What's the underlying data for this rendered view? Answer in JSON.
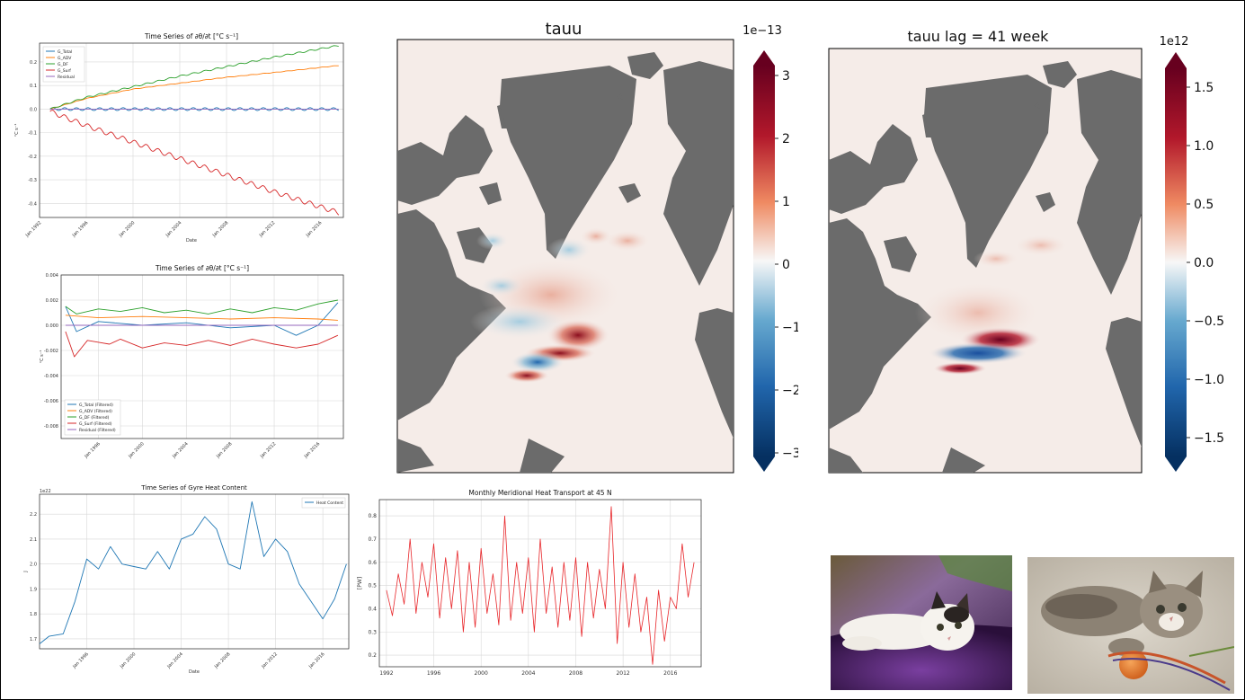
{
  "chart_data": [
    {
      "id": "budget",
      "type": "line",
      "title": "Time Series of ∂θ/∂t [°C s⁻¹]",
      "xlabel": "Date",
      "ylabel": "°C s⁻¹",
      "x_ticks": [
        "Jan 1992",
        "Jan 1996",
        "Jan 2000",
        "Jan 2004",
        "Jan 2008",
        "Jan 2012",
        "Jan 2016"
      ],
      "y_ticks": [
        "0.2",
        "0.1",
        "0.0",
        "-0.1",
        "-0.2",
        "-0.3",
        "-0.4"
      ],
      "ylim": [
        -0.46,
        0.28
      ],
      "xlim": [
        1992.0,
        2018.0
      ],
      "legend": "top-left",
      "grid": true,
      "series": [
        {
          "name": "G_Total",
          "color": "#1f77b4",
          "values": [
            [
              1992.9,
              0.0
            ],
            [
              2017.6,
              0.0
            ]
          ],
          "ripple": 0.006
        },
        {
          "name": "G_ADV",
          "color": "#ff7f0e",
          "values": [
            [
              1992.9,
              0.0
            ],
            [
              1996,
              0.045
            ],
            [
              2000,
              0.085
            ],
            [
              2004,
              0.11
            ],
            [
              2008,
              0.135
            ],
            [
              2012,
              0.155
            ],
            [
              2017.6,
              0.185
            ]
          ],
          "ripple": 0.001
        },
        {
          "name": "G_DF",
          "color": "#2ca02c",
          "values": [
            [
              1992.9,
              0.0
            ],
            [
              1996,
              0.05
            ],
            [
              2000,
              0.095
            ],
            [
              2004,
              0.14
            ],
            [
              2008,
              0.18
            ],
            [
              2012,
              0.22
            ],
            [
              2017.6,
              0.27
            ]
          ],
          "ripple": 0.003
        },
        {
          "name": "G_Surf",
          "color": "#d62728",
          "values": [
            [
              1992.9,
              -0.01
            ],
            [
              1996,
              -0.07
            ],
            [
              2000,
              -0.14
            ],
            [
              2004,
              -0.21
            ],
            [
              2008,
              -0.28
            ],
            [
              2012,
              -0.35
            ],
            [
              2017.6,
              -0.44
            ]
          ],
          "ripple": 0.01
        },
        {
          "name": "Residual",
          "color": "#9467bd",
          "values": [
            [
              1992.9,
              0.0
            ],
            [
              2017.6,
              0.0
            ]
          ],
          "ripple": 0.0
        }
      ]
    },
    {
      "id": "filtered",
      "type": "line",
      "title": "Time Series of ∂θ/∂t [°C s⁻¹]",
      "xlabel": "",
      "ylabel": "°C s⁻¹",
      "x_ticks": [
        "Jan 1996",
        "Jan 2000",
        "Jan 2004",
        "Jan 2008",
        "Jan 2012",
        "Jan 2016"
      ],
      "y_ticks": [
        "0.004",
        "0.002",
        "0.000",
        "-0.002",
        "-0.004",
        "-0.006",
        "-0.008"
      ],
      "ylim": [
        -0.009,
        0.004
      ],
      "xlim": [
        1992.6,
        2018.3
      ],
      "legend": "bottom-left",
      "grid": true,
      "series": [
        {
          "name": "G_Total (Filtered)",
          "color": "#1f77b4",
          "values": [
            [
              1993,
              0.0015
            ],
            [
              1994,
              -0.0005
            ],
            [
              1996,
              0.0003
            ],
            [
              2000,
              0.0
            ],
            [
              2004,
              0.0002
            ],
            [
              2008,
              -0.0002
            ],
            [
              2012,
              0.0
            ],
            [
              2014,
              -0.0008
            ],
            [
              2016,
              0.0
            ],
            [
              2017.8,
              0.0018
            ]
          ]
        },
        {
          "name": "G_ADV (Filtered)",
          "color": "#ff7f0e",
          "values": [
            [
              1993,
              0.0008
            ],
            [
              1996,
              0.0006
            ],
            [
              2000,
              0.0007
            ],
            [
              2004,
              0.0006
            ],
            [
              2008,
              0.0005
            ],
            [
              2012,
              0.0006
            ],
            [
              2016,
              0.0005
            ],
            [
              2017.8,
              0.0004
            ]
          ]
        },
        {
          "name": "G_DF (Filtered)",
          "color": "#2ca02c",
          "values": [
            [
              1993,
              0.0015
            ],
            [
              1994,
              0.0009
            ],
            [
              1996,
              0.0013
            ],
            [
              1998,
              0.0011
            ],
            [
              2000,
              0.0014
            ],
            [
              2002,
              0.001
            ],
            [
              2004,
              0.0012
            ],
            [
              2006,
              0.0009
            ],
            [
              2008,
              0.0013
            ],
            [
              2010,
              0.001
            ],
            [
              2012,
              0.0014
            ],
            [
              2014,
              0.0012
            ],
            [
              2016,
              0.0017
            ],
            [
              2017.8,
              0.002
            ]
          ]
        },
        {
          "name": "G_Surf (Filtered)",
          "color": "#d62728",
          "values": [
            [
              1993,
              -0.0005
            ],
            [
              1993.8,
              -0.0025
            ],
            [
              1995,
              -0.0012
            ],
            [
              1997,
              -0.0015
            ],
            [
              1998,
              -0.0011
            ],
            [
              2000,
              -0.0018
            ],
            [
              2002,
              -0.0014
            ],
            [
              2004,
              -0.0016
            ],
            [
              2006,
              -0.0012
            ],
            [
              2008,
              -0.0016
            ],
            [
              2010,
              -0.0011
            ],
            [
              2012,
              -0.0015
            ],
            [
              2014,
              -0.0018
            ],
            [
              2016,
              -0.0015
            ],
            [
              2017.8,
              -0.0008
            ]
          ]
        },
        {
          "name": "Residual (Filtered)",
          "color": "#9467bd",
          "values": [
            [
              1993,
              0.0
            ],
            [
              2017.8,
              0.0
            ]
          ]
        }
      ]
    },
    {
      "id": "heat",
      "type": "line",
      "title": "Time Series of Gyre Heat Content",
      "xlabel": "Date",
      "ylabel": "J",
      "y_scale_note": "1e22",
      "x_ticks": [
        "Jan 1996",
        "Jan 2000",
        "Jan 2004",
        "Jan 2008",
        "Jan 2012",
        "Jan 2016"
      ],
      "y_ticks": [
        "2.2",
        "2.1",
        "2.0",
        "1.9",
        "1.8",
        "1.7"
      ],
      "ylim": [
        1.66,
        2.28
      ],
      "xlim": [
        1992.0,
        2018.2
      ],
      "legend": "top-right",
      "grid": true,
      "series": [
        {
          "name": "Heat Content",
          "color": "#1f77b4",
          "values": [
            [
              1992.0,
              1.68
            ],
            [
              1992.8,
              1.71
            ],
            [
              1994,
              1.72
            ],
            [
              1995,
              1.85
            ],
            [
              1996,
              2.02
            ],
            [
              1997,
              1.98
            ],
            [
              1998,
              2.07
            ],
            [
              1999,
              2.0
            ],
            [
              2000,
              1.99
            ],
            [
              2001,
              1.98
            ],
            [
              2002,
              2.05
            ],
            [
              2003,
              1.98
            ],
            [
              2004,
              2.1
            ],
            [
              2005,
              2.12
            ],
            [
              2006,
              2.19
            ],
            [
              2007,
              2.14
            ],
            [
              2008,
              2.0
            ],
            [
              2009,
              1.98
            ],
            [
              2010,
              2.25
            ],
            [
              2011,
              2.03
            ],
            [
              2012,
              2.1
            ],
            [
              2013,
              2.05
            ],
            [
              2014,
              1.92
            ],
            [
              2015,
              1.85
            ],
            [
              2016,
              1.78
            ],
            [
              2017,
              1.86
            ],
            [
              2018.0,
              2.0
            ]
          ]
        }
      ]
    },
    {
      "id": "mht",
      "type": "line",
      "title": "Monthly Meridional Heat Transport at 45 N",
      "xlabel": "",
      "ylabel": "[PW]",
      "x_ticks": [
        "1992",
        "1996",
        "2000",
        "2004",
        "2008",
        "2012",
        "2016"
      ],
      "y_ticks": [
        "0.8",
        "0.7",
        "0.6",
        "0.5",
        "0.4",
        "0.3",
        "0.2"
      ],
      "ylim": [
        0.15,
        0.87
      ],
      "xlim": [
        1991.4,
        2018.6
      ],
      "grid": true,
      "series": [
        {
          "name": "",
          "color": "#e8262a",
          "values": [
            [
              1992.0,
              0.48
            ],
            [
              1992.5,
              0.37
            ],
            [
              1993.0,
              0.55
            ],
            [
              1993.5,
              0.42
            ],
            [
              1994.0,
              0.7
            ],
            [
              1994.5,
              0.38
            ],
            [
              1995.0,
              0.6
            ],
            [
              1995.5,
              0.45
            ],
            [
              1996.0,
              0.68
            ],
            [
              1996.5,
              0.36
            ],
            [
              1997.0,
              0.62
            ],
            [
              1997.5,
              0.4
            ],
            [
              1998.0,
              0.65
            ],
            [
              1998.5,
              0.3
            ],
            [
              1999.0,
              0.6
            ],
            [
              1999.5,
              0.32
            ],
            [
              2000.0,
              0.66
            ],
            [
              2000.5,
              0.38
            ],
            [
              2001.0,
              0.55
            ],
            [
              2001.5,
              0.33
            ],
            [
              2002.0,
              0.8
            ],
            [
              2002.5,
              0.35
            ],
            [
              2003.0,
              0.6
            ],
            [
              2003.5,
              0.38
            ],
            [
              2004.0,
              0.62
            ],
            [
              2004.5,
              0.3
            ],
            [
              2005.0,
              0.7
            ],
            [
              2005.5,
              0.38
            ],
            [
              2006.0,
              0.58
            ],
            [
              2006.5,
              0.32
            ],
            [
              2007.0,
              0.6
            ],
            [
              2007.5,
              0.35
            ],
            [
              2008.0,
              0.62
            ],
            [
              2008.5,
              0.28
            ],
            [
              2009.0,
              0.6
            ],
            [
              2009.5,
              0.36
            ],
            [
              2010.0,
              0.57
            ],
            [
              2010.5,
              0.4
            ],
            [
              2011.0,
              0.84
            ],
            [
              2011.5,
              0.25
            ],
            [
              2012.0,
              0.6
            ],
            [
              2012.5,
              0.32
            ],
            [
              2013.0,
              0.55
            ],
            [
              2013.5,
              0.3
            ],
            [
              2014.0,
              0.45
            ],
            [
              2014.5,
              0.16
            ],
            [
              2015.0,
              0.48
            ],
            [
              2015.5,
              0.26
            ],
            [
              2016.0,
              0.45
            ],
            [
              2016.5,
              0.4
            ],
            [
              2017.0,
              0.68
            ],
            [
              2017.5,
              0.45
            ],
            [
              2018.0,
              0.6
            ]
          ]
        }
      ]
    }
  ],
  "maps": [
    {
      "id": "tauu",
      "title": "tauu",
      "colorbar_offset": "1e−13",
      "colorbar_ticks": [
        "3",
        "2",
        "1",
        "0",
        "−1",
        "−2",
        "−3"
      ]
    },
    {
      "id": "tauu_lag",
      "title": "tauu lag = 41 week",
      "colorbar_offset": "1e12",
      "colorbar_ticks": [
        "1.5",
        "1.0",
        "0.5",
        "0.0",
        "−0.5",
        "−1.0",
        "−1.5"
      ]
    }
  ],
  "colors": {
    "land": "#6b6b6b",
    "ocean": "#f5ece8",
    "cmap_pos": "#b2182b",
    "cmap_neg": "#2166ac"
  }
}
